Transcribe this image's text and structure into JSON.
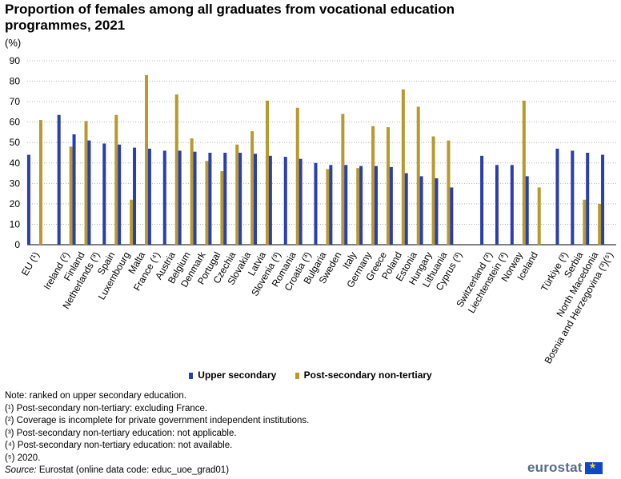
{
  "chart_data": {
    "type": "bar",
    "title": "Proportion of females among all graduates from vocational education programmes, 2021",
    "unit": "(%)",
    "ylim": [
      0,
      90
    ],
    "yticks": [
      0,
      10,
      20,
      30,
      40,
      50,
      60,
      70,
      80,
      90
    ],
    "grid": true,
    "legend_position": "bottom",
    "colors": {
      "upper": "#2a3ead",
      "post": "#b79a2e"
    },
    "categories": [
      "EU (¹)",
      "",
      "Ireland (²)",
      "Finland",
      "Netherlands (³)",
      "Spain",
      "Luxembourg",
      "Malta",
      "France (⁴)",
      "Austria",
      "Belgium",
      "Denmark",
      "Portugal",
      "Czechia",
      "Slovakia",
      "Latvia",
      "Slovenia (³)",
      "Romania",
      "Croatia (³)",
      "Bulgaria",
      "Sweden",
      "Italy",
      "Germany",
      "Greece",
      "Poland",
      "Estonia",
      "Hungary",
      "Lithuania",
      "Cyprus (³)",
      "",
      "Switzerland (³)",
      "Liechtenstein (³)",
      "Norway",
      "Iceland",
      "",
      "Türkiye (³)",
      "Serbia",
      "North Macedonia",
      "Bosnia and Herzegovina (³)(⁵)"
    ],
    "series": [
      {
        "name": "Upper secondary",
        "values": [
          44,
          null,
          63.5,
          54,
          51,
          49.5,
          49,
          47.5,
          47,
          46,
          46,
          45.5,
          45,
          45,
          45,
          44.5,
          43.5,
          43,
          42,
          40,
          39,
          39,
          38.5,
          38.5,
          38,
          35,
          33.5,
          32.5,
          28,
          null,
          43.5,
          39,
          39,
          33.5,
          null,
          47,
          46,
          45,
          44
        ]
      },
      {
        "name": "Post-secondary non-tertiary",
        "values": [
          61,
          null,
          48,
          60.5,
          null,
          63.5,
          22,
          83,
          null,
          73.5,
          52,
          41,
          36,
          49,
          55.5,
          70.5,
          null,
          67,
          null,
          37,
          64,
          37.5,
          58,
          57.5,
          76,
          67.5,
          53,
          51,
          null,
          null,
          null,
          null,
          70.5,
          28,
          null,
          null,
          22,
          20,
          null
        ]
      }
    ]
  },
  "legend": {
    "upper": "Upper secondary",
    "post": "Post-secondary non-tertiary"
  },
  "notes": [
    "Note: ranked on upper secondary education.",
    "(¹) Post-secondary non-tertiary:  excluding France.",
    "(²) Coverage is incomplete for private government independent institutions.",
    "(³) Post-secondary non-tertiary education:  not applicable.",
    "(⁴) Post-secondary non-tertiary education:  not available.",
    "(⁵) 2020."
  ],
  "source": {
    "label": "Source:",
    "text": " Eurostat (online data code: educ_uoe_grad01)"
  },
  "logo": {
    "text": "eurostat",
    "icon": "eu-flag-icon"
  }
}
